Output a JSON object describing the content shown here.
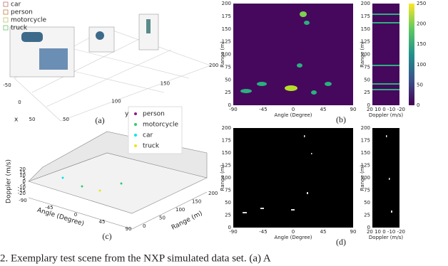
{
  "panel_a": {
    "legend": [
      "car",
      "person",
      "motorcycle",
      "truck"
    ],
    "x_ticks": [
      "-50",
      "0",
      "50"
    ],
    "x_label": "x",
    "y_ticks": [
      "50",
      "100",
      "150",
      "200"
    ],
    "y_label": "y",
    "label": "(a)"
  },
  "panel_b": {
    "y_label": "Range (m)",
    "y_ticks": [
      "0",
      "25",
      "50",
      "75",
      "100",
      "125",
      "150",
      "175",
      "200"
    ],
    "x_label": "Angle (Degree)",
    "x_ticks": [
      "-90",
      "-45",
      "0",
      "45",
      "90"
    ],
    "doppler_label": "Doppler (m/s)",
    "doppler_ticks": "20 10 0 -10 -20",
    "colorbar_ticks": [
      "0",
      "50",
      "100",
      "150",
      "200",
      "250"
    ],
    "label": "(b)"
  },
  "panel_c": {
    "legend": [
      "person",
      "motorcycle",
      "car",
      "truck"
    ],
    "z_label": "Doppler (m/s)",
    "z_ticks": [
      "20",
      "15",
      "10",
      "5",
      "0",
      "-5",
      "-10",
      "-15",
      "-20"
    ],
    "x_label": "Angle (Degree)",
    "x_ticks": [
      "-90",
      "-45",
      "0",
      "45",
      "90"
    ],
    "y_label": "Range (m)",
    "y_ticks": [
      "0",
      "50",
      "100",
      "150",
      "200"
    ],
    "label": "(c)"
  },
  "panel_d": {
    "y_label": "Range (m)",
    "y_ticks": [
      "0",
      "25",
      "50",
      "75",
      "100",
      "125",
      "150",
      "175",
      "200"
    ],
    "x_label": "Angle (Degree)",
    "x_ticks": [
      "-90",
      "-45",
      "0",
      "45",
      "90"
    ],
    "doppler_label": "Doppler (m/s)",
    "doppler_ticks": "20 10 0 -10 -20",
    "label": "(d)"
  },
  "caption": "2.    Exemplary test scene from the NXP simulated data set. (a) A"
}
